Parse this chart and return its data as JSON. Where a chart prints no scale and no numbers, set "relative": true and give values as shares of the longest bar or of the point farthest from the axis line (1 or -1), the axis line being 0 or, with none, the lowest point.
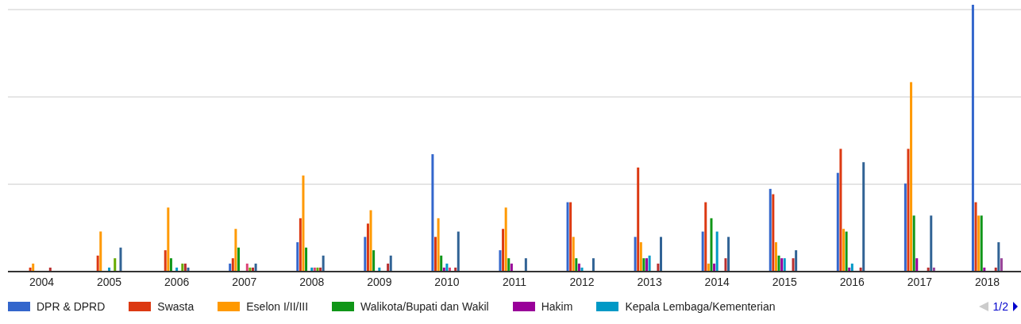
{
  "chart_data": {
    "type": "bar",
    "relative": true,
    "grid": "y",
    "legend": "bottom",
    "categories": [
      "2004",
      "2005",
      "2006",
      "2007",
      "2008",
      "2009",
      "2010",
      "2011",
      "2012",
      "2013",
      "2014",
      "2015",
      "2016",
      "2017",
      "2018"
    ],
    "series": [
      {
        "name": "DPR & DPRD",
        "color": "#3366cc",
        "values": [
          0,
          0,
          0,
          0.03,
          0.11,
          0.13,
          0.44,
          0.08,
          0.26,
          0.13,
          0.15,
          0.31,
          0.37,
          0.33,
          1
        ]
      },
      {
        "name": "Swasta",
        "color": "#dc3912",
        "values": [
          0.015,
          0.06,
          0.08,
          0.05,
          0.2,
          0.18,
          0.13,
          0.16,
          0.26,
          0.39,
          0.26,
          0.29,
          0.46,
          0.46,
          0.26
        ]
      },
      {
        "name": "Eselon I/II/III",
        "color": "#ff9900",
        "values": [
          0.03,
          0.15,
          0.24,
          0.16,
          0.36,
          0.23,
          0.2,
          0.24,
          0.13,
          0.11,
          0.03,
          0.11,
          0.16,
          0.71,
          0.21
        ]
      },
      {
        "name": "Walikota/Bupati dan Wakil",
        "color": "#109618",
        "values": [
          0,
          0,
          0.05,
          0.09,
          0.09,
          0.08,
          0.06,
          0.05,
          0.05,
          0.05,
          0.2,
          0.06,
          0.15,
          0.21,
          0.21
        ]
      },
      {
        "name": "Hakim",
        "color": "#990099",
        "values": [
          0,
          0,
          0,
          0,
          0,
          0,
          0.015,
          0.03,
          0.03,
          0.05,
          0.03,
          0.05,
          0.015,
          0.05,
          0.015
        ]
      },
      {
        "name": "Kepala Lembaga/Kementerian",
        "color": "#0099c6",
        "values": [
          0,
          0.015,
          0.015,
          0,
          0.015,
          0.015,
          0.03,
          0,
          0.015,
          0.06,
          0.15,
          0.05,
          0.03,
          0,
          0
        ]
      },
      {
        "color": "#dd4477",
        "values": [
          0,
          0,
          0,
          0.03,
          0.015,
          0,
          0.015,
          0,
          0,
          0,
          0,
          0,
          0,
          0,
          0
        ]
      },
      {
        "color": "#66aa00",
        "values": [
          0,
          0.05,
          0.03,
          0.015,
          0.015,
          0,
          0,
          0,
          0,
          0,
          0,
          0,
          0,
          0,
          0
        ]
      },
      {
        "color": "#b82e2e",
        "values": [
          0.015,
          0,
          0.03,
          0.015,
          0.015,
          0.03,
          0.015,
          0,
          0,
          0.03,
          0.05,
          0.05,
          0.015,
          0.015,
          0.015
        ]
      },
      {
        "color": "#316395",
        "values": [
          0,
          0.09,
          0.015,
          0.03,
          0.06,
          0.06,
          0.15,
          0.05,
          0.05,
          0.13,
          0.13,
          0.08,
          0.41,
          0.21,
          0.11
        ]
      },
      {
        "color": "#994499",
        "values": [
          0,
          0,
          0,
          0,
          0,
          0,
          0,
          0,
          0,
          0,
          0,
          0,
          0,
          0.015,
          0.05
        ]
      }
    ],
    "annotations": [
      "1/2"
    ]
  }
}
